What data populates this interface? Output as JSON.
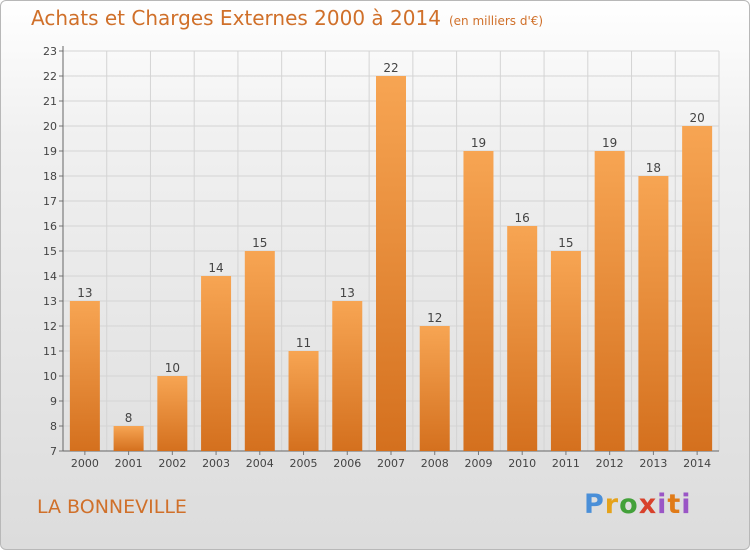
{
  "header": {
    "title": "Achats et Charges Externes 2000 à 2014",
    "subtitle": "(en milliers d'€)"
  },
  "footer": {
    "location": "LA BONNEVILLE",
    "brand": "Proxiti"
  },
  "colors": {
    "accent": "#d0702a",
    "bar_top": "#f7a553",
    "bar_bottom": "#d4701e"
  },
  "chart_data": {
    "type": "bar",
    "title": "Achats et Charges Externes 2000 à 2014",
    "subtitle": "(en milliers d'€)",
    "xlabel": "",
    "ylabel": "",
    "categories": [
      "2000",
      "2001",
      "2002",
      "2003",
      "2004",
      "2005",
      "2006",
      "2007",
      "2008",
      "2009",
      "2010",
      "2011",
      "2012",
      "2013",
      "2014"
    ],
    "values": [
      13,
      8,
      10,
      14,
      15,
      11,
      13,
      22,
      12,
      19,
      16,
      15,
      19,
      18,
      20
    ],
    "ylim": [
      7,
      23
    ],
    "yticks": [
      7,
      8,
      9,
      10,
      11,
      12,
      13,
      14,
      15,
      16,
      17,
      18,
      19,
      20,
      21,
      22,
      23
    ],
    "grid": true,
    "legend": "none"
  }
}
